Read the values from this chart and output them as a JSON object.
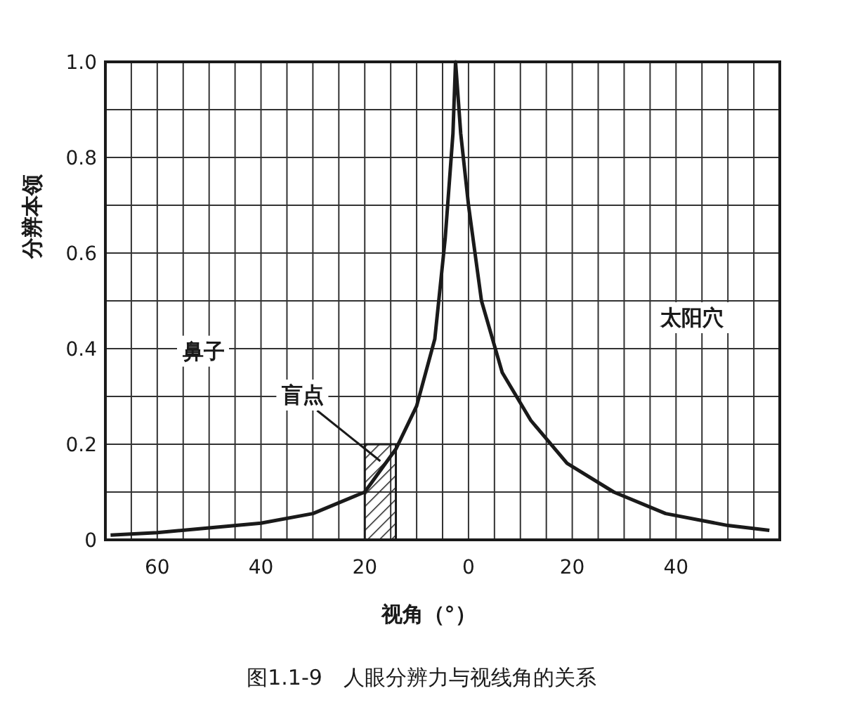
{
  "chart_data": {
    "type": "line",
    "xlabel": "视角（°）",
    "ylabel": "分辨本领",
    "x": [
      -69,
      -60,
      -50,
      -40,
      -30,
      -20,
      -14,
      -10,
      -6.5,
      -4.5,
      -3,
      -2.5,
      -1.5,
      0,
      2.5,
      6.5,
      12,
      19,
      28,
      38,
      50,
      58
    ],
    "series": [
      {
        "color": "#1a1a1a",
        "values": [
          0.01,
          0.015,
          0.025,
          0.035,
          0.055,
          0.1,
          0.19,
          0.28,
          0.42,
          0.63,
          0.85,
          1.0,
          0.85,
          0.7,
          0.5,
          0.35,
          0.25,
          0.16,
          0.1,
          0.055,
          0.03,
          0.02
        ]
      }
    ],
    "xlim": [
      -70,
      60
    ],
    "ylim": [
      0,
      1
    ],
    "xticks": [
      {
        "value": -70,
        "label": null
      },
      {
        "value": -65,
        "label": null
      },
      {
        "value": -60,
        "label": "60"
      },
      {
        "value": -55,
        "label": null
      },
      {
        "value": -50,
        "label": null
      },
      {
        "value": -45,
        "label": null
      },
      {
        "value": -40,
        "label": "40"
      },
      {
        "value": -35,
        "label": null
      },
      {
        "value": -30,
        "label": null
      },
      {
        "value": -25,
        "label": null
      },
      {
        "value": -20,
        "label": "20"
      },
      {
        "value": -15,
        "label": null
      },
      {
        "value": -10,
        "label": null
      },
      {
        "value": -5,
        "label": null
      },
      0,
      {
        "value": 5,
        "label": null
      },
      {
        "value": 10,
        "label": null
      },
      {
        "value": 15,
        "label": null
      },
      20,
      {
        "value": 25,
        "label": null
      },
      {
        "value": 30,
        "label": null
      },
      {
        "value": 35,
        "label": null
      },
      40,
      {
        "value": 45,
        "label": null
      },
      {
        "value": 50,
        "label": null
      },
      {
        "value": 55,
        "label": null
      },
      {
        "value": 60,
        "label": null
      }
    ],
    "yticks": [
      0,
      {
        "value": 0.1,
        "label": null
      },
      0.2,
      {
        "value": 0.3,
        "label": null
      },
      0.4,
      {
        "value": 0.5,
        "label": null
      },
      0.6,
      {
        "value": 0.7,
        "label": null
      },
      0.8,
      {
        "value": 0.9,
        "label": null
      },
      {
        "value": 1,
        "label": "1.0"
      }
    ],
    "grid": true,
    "marker": "none",
    "line_style": "solid",
    "bands": [
      {
        "axis": "x",
        "from": -20,
        "to": -14,
        "label": "盲点",
        "color": "#1a1a1a"
      }
    ],
    "annotations": [
      "鼻子",
      "太阳穴",
      "图1.1-9　人眼分辨力与视线角的关系"
    ]
  }
}
